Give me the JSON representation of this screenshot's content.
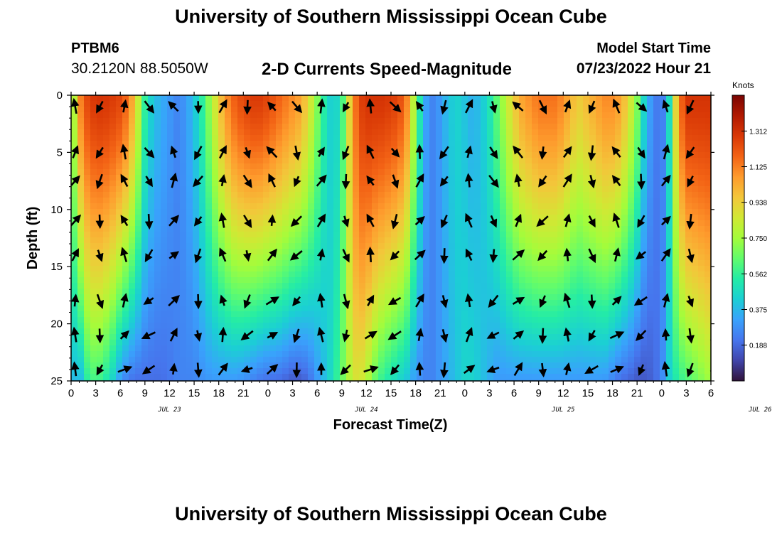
{
  "header": {
    "title": "University of Southern Mississippi Ocean Cube",
    "station_id": "PTBM6",
    "station_coords": "30.2120N  88.5050W",
    "chart_title": "2-D Currents Speed-Magnitude",
    "model_start_label": "Model Start Time",
    "model_start_value": "07/23/2022 Hour 21"
  },
  "footer": {
    "title": "University of Southern Mississippi Ocean Cube"
  },
  "chart_data": {
    "type": "heatmap",
    "title": "2-D Currents Speed-Magnitude",
    "xlabel": "Forecast Time(Z)",
    "ylabel": "Depth (ft)",
    "x_tick_labels": [
      "0",
      "3",
      "6",
      "9",
      "12",
      "15",
      "18",
      "21",
      "0",
      "3",
      "6",
      "9",
      "12",
      "15",
      "18",
      "21",
      "0",
      "3",
      "6",
      "9",
      "12",
      "15",
      "18",
      "21",
      "0",
      "3",
      "6"
    ],
    "date_labels": [
      {
        "label": "JUL 23",
        "hours_from_first_tick": 12
      },
      {
        "label": "JUL 24",
        "hours_from_first_tick": 36
      },
      {
        "label": "JUL 25",
        "hours_from_first_tick": 60
      },
      {
        "label": "JUL 26",
        "hours_from_first_tick": 84
      }
    ],
    "x_range_hours": [
      0,
      78
    ],
    "y_tick_labels": [
      "0",
      "5",
      "10",
      "15",
      "20",
      "25"
    ],
    "y_range_ft": [
      0,
      25
    ],
    "y_inverted": true,
    "colorbar": {
      "title": "Knots",
      "ticks": [
        "1.312",
        "1.125",
        "0.938",
        "0.750",
        "0.562",
        "0.375",
        "0.188"
      ],
      "range": [
        0,
        1.5
      ],
      "colors": [
        "#30123b",
        "#4145ab",
        "#4675ed",
        "#39a2fc",
        "#1bcfd4",
        "#24eca6",
        "#61fc6c",
        "#a4fc3b",
        "#d1e834",
        "#f3c63a",
        "#fe9b2d",
        "#f36315",
        "#d93806",
        "#b11901",
        "#7a0402"
      ]
    },
    "speed_profile": {
      "description_hours": [
        0,
        1,
        2,
        3,
        4,
        5,
        6,
        7,
        8,
        9,
        10,
        11,
        12,
        13,
        14,
        15,
        16,
        17,
        18,
        19,
        20,
        21,
        22,
        23,
        24,
        25,
        26,
        27,
        28,
        29,
        30,
        31,
        32,
        33,
        34,
        35,
        36,
        37,
        38,
        39,
        40,
        41,
        42,
        43,
        44,
        45,
        46,
        47,
        48,
        49,
        50,
        51,
        52,
        53,
        54,
        55,
        56,
        57,
        58,
        59,
        60,
        61,
        62,
        63,
        64,
        65,
        66,
        67,
        68,
        69,
        70,
        71,
        72,
        73,
        74,
        75,
        76,
        77,
        78
      ],
      "surface_knots": [
        0.6,
        1.1,
        1.25,
        1.3,
        1.3,
        1.28,
        1.25,
        1.15,
        0.9,
        0.55,
        0.4,
        0.35,
        0.3,
        0.25,
        0.3,
        0.4,
        0.55,
        0.75,
        0.95,
        1.1,
        1.2,
        1.25,
        1.28,
        1.28,
        1.25,
        1.2,
        1.15,
        1.1,
        1.05,
        0.9,
        0.7,
        0.5,
        0.4,
        0.55,
        0.95,
        1.25,
        1.3,
        1.3,
        1.3,
        1.28,
        1.25,
        1.1,
        0.7,
        0.35,
        0.25,
        0.3,
        0.4,
        0.45,
        0.4,
        0.35,
        0.4,
        0.5,
        0.65,
        0.8,
        0.95,
        1.05,
        1.1,
        1.15,
        1.15,
        1.15,
        1.1,
        1.0,
        0.95,
        1.0,
        1.05,
        1.1,
        1.1,
        1.05,
        0.9,
        0.7,
        0.4,
        0.25,
        0.2,
        0.5,
        1.1,
        1.3,
        1.3,
        1.3,
        1.3
      ],
      "bottom_knots": [
        0.4,
        0.35,
        0.55,
        0.6,
        0.55,
        0.45,
        0.3,
        0.22,
        0.2,
        0.2,
        0.2,
        0.2,
        0.22,
        0.25,
        0.25,
        0.25,
        0.28,
        0.3,
        0.3,
        0.3,
        0.3,
        0.28,
        0.25,
        0.22,
        0.2,
        0.2,
        0.18,
        0.15,
        0.15,
        0.2,
        0.3,
        0.4,
        0.5,
        0.65,
        0.8,
        0.9,
        0.8,
        0.65,
        0.55,
        0.5,
        0.45,
        0.4,
        0.3,
        0.25,
        0.25,
        0.3,
        0.35,
        0.4,
        0.45,
        0.45,
        0.4,
        0.35,
        0.3,
        0.3,
        0.3,
        0.3,
        0.3,
        0.3,
        0.3,
        0.3,
        0.3,
        0.3,
        0.3,
        0.3,
        0.3,
        0.3,
        0.25,
        0.2,
        0.18,
        0.15,
        0.15,
        0.18,
        0.25,
        0.45,
        0.55,
        0.6,
        0.65,
        0.7,
        0.75
      ]
    },
    "vector_grid": {
      "hours": [
        0,
        3,
        6,
        9,
        12,
        15,
        18,
        21,
        24,
        27,
        30,
        33,
        36,
        39,
        42,
        45,
        48,
        51,
        54,
        57,
        60,
        63,
        66,
        69,
        72,
        75,
        78
      ],
      "depths_ft": [
        1,
        5,
        7.5,
        11,
        14,
        18,
        21,
        24
      ]
    }
  }
}
